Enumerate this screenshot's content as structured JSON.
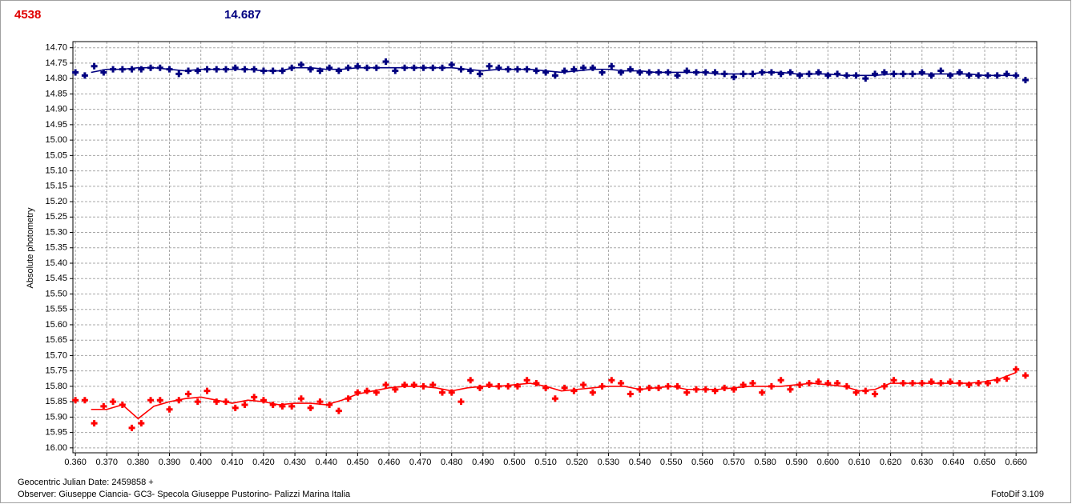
{
  "chart_data": {
    "type": "scatter",
    "annotations": [
      "4538",
      "14.687"
    ],
    "ylabel": "Absolute photometry",
    "xlabel": "Geocentric Julian Date: 2459858 +",
    "caption": "Observer: Giuseppe Ciancia- GC3- Specola Giuseppe Pustorino- Palizzi Marina Italia",
    "credit": "FotoDif 3.109",
    "grid": true,
    "y_inverted": true,
    "xlim": [
      0.3592,
      0.6666
    ],
    "ylim": [
      14.68,
      16.016
    ],
    "x": [
      0.36,
      0.363,
      0.366,
      0.369,
      0.372,
      0.375,
      0.378,
      0.381,
      0.384,
      0.387,
      0.39,
      0.393,
      0.396,
      0.399,
      0.402,
      0.405,
      0.408,
      0.411,
      0.414,
      0.417,
      0.42,
      0.423,
      0.426,
      0.429,
      0.432,
      0.435,
      0.438,
      0.441,
      0.444,
      0.447,
      0.45,
      0.453,
      0.456,
      0.459,
      0.462,
      0.465,
      0.468,
      0.471,
      0.474,
      0.477,
      0.48,
      0.483,
      0.486,
      0.489,
      0.492,
      0.495,
      0.498,
      0.501,
      0.504,
      0.507,
      0.51,
      0.513,
      0.516,
      0.519,
      0.522,
      0.525,
      0.528,
      0.531,
      0.534,
      0.537,
      0.54,
      0.543,
      0.546,
      0.549,
      0.552,
      0.555,
      0.558,
      0.561,
      0.564,
      0.567,
      0.57,
      0.573,
      0.576,
      0.579,
      0.582,
      0.585,
      0.588,
      0.591,
      0.594,
      0.597,
      0.6,
      0.603,
      0.606,
      0.609,
      0.612,
      0.615,
      0.618,
      0.621,
      0.624,
      0.627,
      0.63,
      0.633,
      0.636,
      0.639,
      0.642,
      0.645,
      0.648,
      0.651,
      0.654,
      0.657,
      0.66,
      0.663
    ],
    "trend_x": [
      0.365,
      0.37,
      0.375,
      0.38,
      0.385,
      0.39,
      0.395,
      0.4,
      0.405,
      0.41,
      0.415,
      0.42,
      0.425,
      0.43,
      0.435,
      0.44,
      0.445,
      0.45,
      0.455,
      0.46,
      0.465,
      0.47,
      0.475,
      0.48,
      0.485,
      0.49,
      0.495,
      0.5,
      0.505,
      0.51,
      0.515,
      0.52,
      0.525,
      0.53,
      0.535,
      0.54,
      0.545,
      0.55,
      0.555,
      0.56,
      0.565,
      0.57,
      0.575,
      0.58,
      0.585,
      0.59,
      0.595,
      0.6,
      0.605,
      0.61,
      0.615,
      0.62,
      0.625,
      0.63,
      0.635,
      0.64,
      0.645,
      0.65,
      0.655,
      0.66
    ],
    "series": [
      {
        "color": "#000080",
        "values": [
          14.78,
          14.79,
          14.76,
          14.78,
          14.77,
          14.77,
          14.77,
          14.77,
          14.765,
          14.765,
          14.77,
          14.785,
          14.775,
          14.775,
          14.77,
          14.77,
          14.77,
          14.765,
          14.77,
          14.77,
          14.775,
          14.775,
          14.775,
          14.765,
          14.755,
          14.77,
          14.775,
          14.765,
          14.775,
          14.765,
          14.76,
          14.765,
          14.765,
          14.745,
          14.775,
          14.765,
          14.765,
          14.765,
          14.765,
          14.765,
          14.755,
          14.77,
          14.775,
          14.785,
          14.76,
          14.765,
          14.77,
          14.77,
          14.77,
          14.775,
          14.78,
          14.79,
          14.775,
          14.77,
          14.765,
          14.765,
          14.78,
          14.76,
          14.78,
          14.77,
          14.78,
          14.78,
          14.78,
          14.78,
          14.79,
          14.775,
          14.78,
          14.78,
          14.78,
          14.785,
          14.795,
          14.785,
          14.785,
          14.78,
          14.78,
          14.785,
          14.78,
          14.79,
          14.785,
          14.78,
          14.79,
          14.785,
          14.79,
          14.79,
          14.8,
          14.785,
          14.78,
          14.785,
          14.785,
          14.785,
          14.78,
          14.79,
          14.775,
          14.79,
          14.78,
          14.79,
          14.79,
          14.79,
          14.79,
          14.785,
          14.79,
          14.805
        ],
        "trend": [
          14.78,
          14.77,
          14.77,
          14.765,
          14.765,
          14.77,
          14.775,
          14.77,
          14.77,
          14.77,
          14.77,
          14.775,
          14.775,
          14.765,
          14.765,
          14.77,
          14.77,
          14.765,
          14.765,
          14.765,
          14.765,
          14.765,
          14.765,
          14.765,
          14.77,
          14.775,
          14.77,
          14.77,
          14.77,
          14.775,
          14.78,
          14.775,
          14.77,
          14.77,
          14.775,
          14.775,
          14.78,
          14.78,
          14.78,
          14.78,
          14.785,
          14.785,
          14.785,
          14.78,
          14.78,
          14.785,
          14.785,
          14.785,
          14.79,
          14.79,
          14.79,
          14.785,
          14.785,
          14.785,
          14.785,
          14.785,
          14.785,
          14.79,
          14.79,
          14.79
        ]
      },
      {
        "color": "#ff0000",
        "values": [
          15.845,
          15.845,
          15.92,
          15.865,
          15.85,
          15.86,
          15.935,
          15.92,
          15.845,
          15.845,
          15.875,
          15.845,
          15.825,
          15.85,
          15.815,
          15.85,
          15.85,
          15.87,
          15.86,
          15.835,
          15.845,
          15.86,
          15.865,
          15.865,
          15.84,
          15.87,
          15.85,
          15.86,
          15.88,
          15.84,
          15.82,
          15.815,
          15.82,
          15.795,
          15.81,
          15.795,
          15.795,
          15.8,
          15.795,
          15.82,
          15.82,
          15.85,
          15.78,
          15.805,
          15.795,
          15.8,
          15.8,
          15.8,
          15.78,
          15.79,
          15.805,
          15.84,
          15.805,
          15.815,
          15.795,
          15.82,
          15.8,
          15.78,
          15.79,
          15.825,
          15.81,
          15.805,
          15.805,
          15.8,
          15.8,
          15.82,
          15.81,
          15.81,
          15.815,
          15.805,
          15.81,
          15.795,
          15.79,
          15.82,
          15.8,
          15.78,
          15.81,
          15.795,
          15.79,
          15.785,
          15.79,
          15.79,
          15.8,
          15.82,
          15.815,
          15.825,
          15.8,
          15.78,
          15.79,
          15.79,
          15.79,
          15.785,
          15.79,
          15.785,
          15.79,
          15.795,
          15.79,
          15.79,
          15.78,
          15.775,
          15.745,
          15.765
        ],
        "trend": [
          15.875,
          15.875,
          15.86,
          15.905,
          15.865,
          15.85,
          15.84,
          15.835,
          15.845,
          15.855,
          15.845,
          15.85,
          15.86,
          15.855,
          15.855,
          15.86,
          15.845,
          15.825,
          15.815,
          15.805,
          15.8,
          15.8,
          15.805,
          15.815,
          15.805,
          15.8,
          15.8,
          15.795,
          15.79,
          15.8,
          15.815,
          15.81,
          15.805,
          15.8,
          15.8,
          15.81,
          15.805,
          15.8,
          15.81,
          15.81,
          15.81,
          15.805,
          15.8,
          15.8,
          15.8,
          15.795,
          15.79,
          15.795,
          15.8,
          15.815,
          15.81,
          15.79,
          15.79,
          15.79,
          15.79,
          15.79,
          15.79,
          15.785,
          15.775,
          15.755
        ]
      }
    ],
    "xticks": [
      {
        "value": 0.36,
        "label": "0.360"
      },
      {
        "value": 0.37,
        "label": "0.370"
      },
      {
        "value": 0.38,
        "label": "0.380"
      },
      {
        "value": 0.39,
        "label": "0.390"
      },
      {
        "value": 0.4,
        "label": "0.400"
      },
      {
        "value": 0.41,
        "label": "0.410"
      },
      {
        "value": 0.42,
        "label": "0.420"
      },
      {
        "value": 0.43,
        "label": "0.430"
      },
      {
        "value": 0.44,
        "label": "0.440"
      },
      {
        "value": 0.45,
        "label": "0.450"
      },
      {
        "value": 0.46,
        "label": "0.460"
      },
      {
        "value": 0.47,
        "label": "0.470"
      },
      {
        "value": 0.48,
        "label": "0.480"
      },
      {
        "value": 0.49,
        "label": "0.490"
      },
      {
        "value": 0.5,
        "label": "0.500"
      },
      {
        "value": 0.51,
        "label": "0.510"
      },
      {
        "value": 0.52,
        "label": "0.520"
      },
      {
        "value": 0.53,
        "label": "0.530"
      },
      {
        "value": 0.54,
        "label": "0.540"
      },
      {
        "value": 0.55,
        "label": "0.550"
      },
      {
        "value": 0.56,
        "label": "0.560"
      },
      {
        "value": 0.57,
        "label": "0.570"
      },
      {
        "value": 0.58,
        "label": "0.580"
      },
      {
        "value": 0.59,
        "label": "0.590"
      },
      {
        "value": 0.6,
        "label": "0.600"
      },
      {
        "value": 0.61,
        "label": "0.610"
      },
      {
        "value": 0.62,
        "label": "0.620"
      },
      {
        "value": 0.63,
        "label": "0.630"
      },
      {
        "value": 0.64,
        "label": "0.640"
      },
      {
        "value": 0.65,
        "label": "0.650"
      },
      {
        "value": 0.66,
        "label": "0.660"
      }
    ],
    "yticks": [
      {
        "value": 14.7,
        "label": "14.70"
      },
      14.75,
      {
        "value": 14.8,
        "label": "14.80"
      },
      14.85,
      {
        "value": 14.9,
        "label": "14.90"
      },
      14.95,
      {
        "value": 15,
        "label": "15.00"
      },
      15.05,
      {
        "value": 15.1,
        "label": "15.10"
      },
      15.15,
      {
        "value": 15.2,
        "label": "15.20"
      },
      15.25,
      {
        "value": 15.3,
        "label": "15.30"
      },
      15.35,
      {
        "value": 15.4,
        "label": "15.40"
      },
      15.45,
      {
        "value": 15.5,
        "label": "15.50"
      },
      15.55,
      {
        "value": 15.6,
        "label": "15.60"
      },
      15.65,
      {
        "value": 15.7,
        "label": "15.70"
      },
      15.75,
      {
        "value": 15.8,
        "label": "15.80"
      },
      15.85,
      {
        "value": 15.9,
        "label": "15.90"
      },
      15.95,
      {
        "value": 16,
        "label": "16.00"
      }
    ]
  }
}
